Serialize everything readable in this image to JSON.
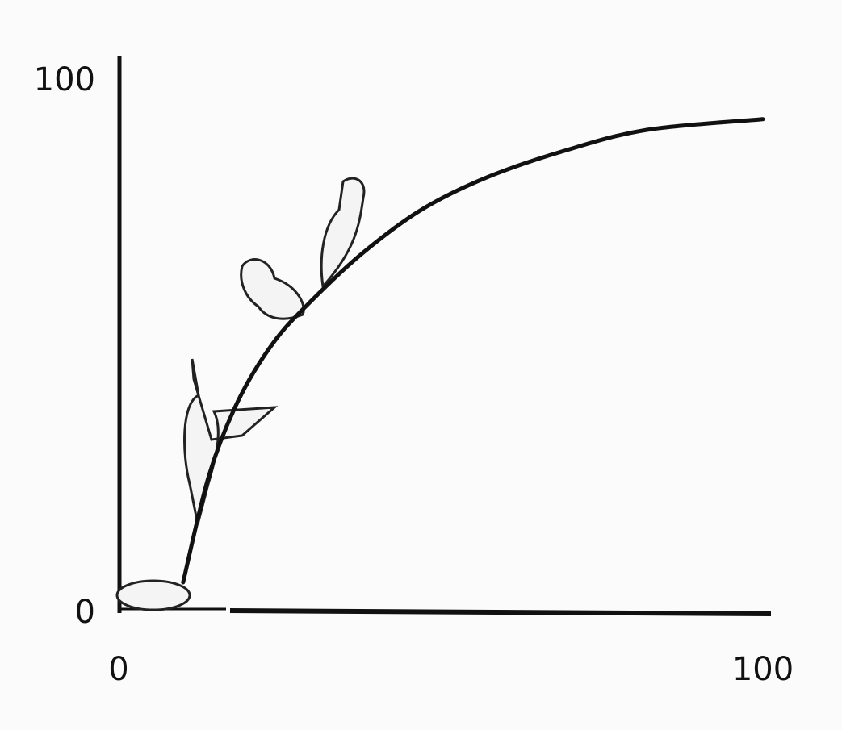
{
  "chart_data": {
    "type": "line",
    "x": [
      10,
      14,
      18.5,
      24,
      30,
      38,
      47,
      57,
      69,
      82,
      100
    ],
    "values": [
      5,
      25,
      39,
      50,
      58,
      67,
      75,
      81,
      86,
      90,
      92
    ],
    "color": "#111111",
    "xlim": [
      0,
      100
    ],
    "ylim": [
      0,
      100
    ],
    "xticks": [
      0,
      100
    ],
    "yticks": [
      0,
      100
    ]
  }
}
